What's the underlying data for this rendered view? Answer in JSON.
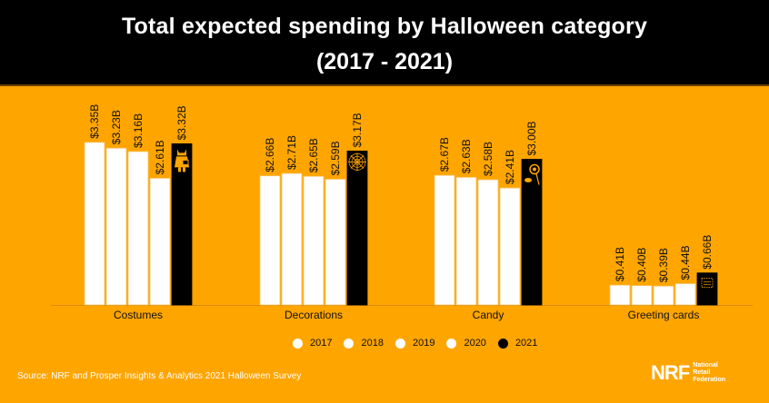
{
  "header": {
    "title_line1": "Total expected spending by Halloween category",
    "title_line2": "(2017 - 2021)"
  },
  "colors": {
    "background": "#FFA500",
    "header_bg": "#000000",
    "bar_2017": "#FFFFFF",
    "bar_2018": "#FFFFFF",
    "bar_2019": "#FFFFFF",
    "bar_2020": "#FFFFFF",
    "bar_2021": "#000000",
    "icon": "#FFA500"
  },
  "chart_data": {
    "type": "bar",
    "title": "Total expected spending by Halloween category (2017 - 2021)",
    "xlabel": "",
    "ylabel": "",
    "unit": "billion USD",
    "ylim": [
      0,
      3.6
    ],
    "grid": false,
    "legend_position": "bottom-center",
    "categories": [
      "Costumes",
      "Decorations",
      "Candy",
      "Greeting cards"
    ],
    "category_icons": [
      "costume-icon",
      "spiderweb-icon",
      "candy-icon",
      "greeting-card-icon"
    ],
    "series": [
      {
        "name": "2017",
        "values": [
          3.35,
          2.66,
          2.67,
          0.41
        ],
        "labels": [
          "$3.35B",
          "$2.66B",
          "$2.67B",
          "$0.41B"
        ]
      },
      {
        "name": "2018",
        "values": [
          3.23,
          2.71,
          2.63,
          0.4
        ],
        "labels": [
          "$3.23B",
          "$2.71B",
          "$2.63B",
          "$0.40B"
        ]
      },
      {
        "name": "2019",
        "values": [
          3.16,
          2.65,
          2.58,
          0.39
        ],
        "labels": [
          "$3.16B",
          "$2.65B",
          "$2.58B",
          "$0.39B"
        ]
      },
      {
        "name": "2020",
        "values": [
          2.61,
          2.59,
          2.41,
          0.44
        ],
        "labels": [
          "$2.61B",
          "$2.59B",
          "$2.41B",
          "$0.44B"
        ]
      },
      {
        "name": "2021",
        "values": [
          3.32,
          3.17,
          3.0,
          0.66
        ],
        "labels": [
          "$3.32B",
          "$3.17B",
          "$3.00B",
          "$0.66B"
        ]
      }
    ]
  },
  "legend": {
    "items": [
      "2017",
      "2018",
      "2019",
      "2020",
      "2021"
    ]
  },
  "footer": {
    "source": "Source: NRF and Prosper Insights & Analytics 2021 Halloween Survey",
    "logo_text": "NRF",
    "logo_line1": "National",
    "logo_line2": "Retail",
    "logo_line3": "Federation"
  }
}
